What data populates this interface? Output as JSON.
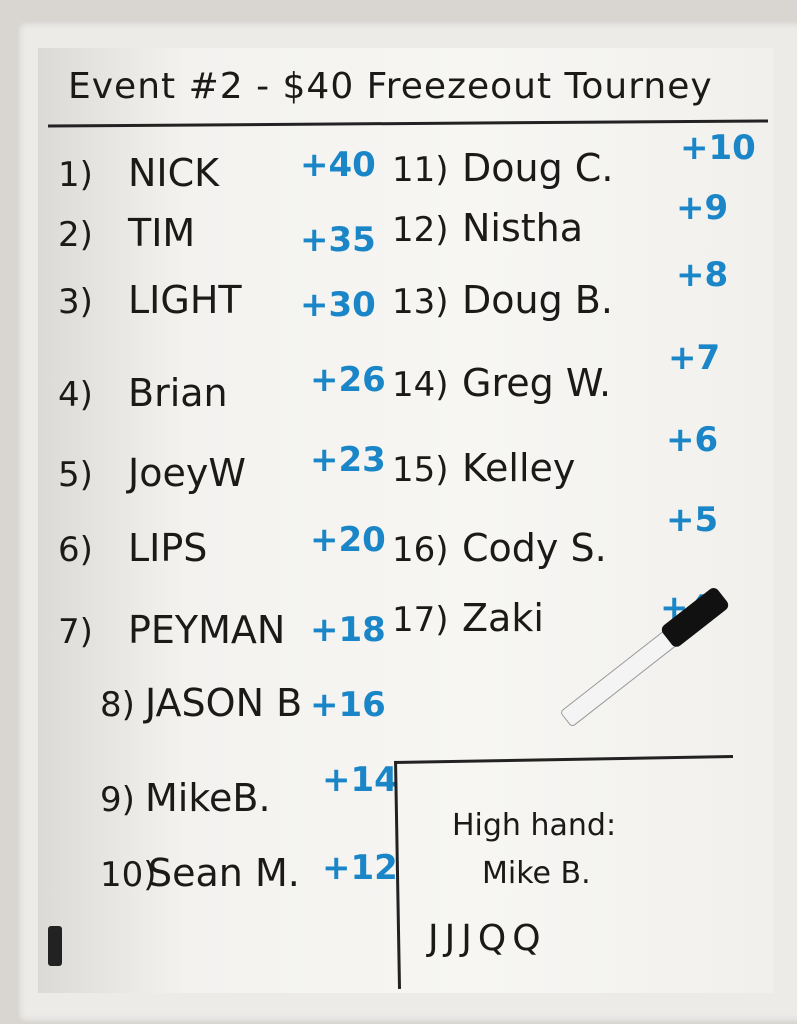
{
  "title": "Event #2 - $40 Freezeout Tourney",
  "standings": [
    {
      "rank": "1)",
      "name": "NICK",
      "points": "+40"
    },
    {
      "rank": "2)",
      "name": "TIM",
      "points": "+35"
    },
    {
      "rank": "3)",
      "name": "LIGHT",
      "points": "+30"
    },
    {
      "rank": "4)",
      "name": "Brian",
      "points": "+26"
    },
    {
      "rank": "5)",
      "name": "JoeyW",
      "points": "+23"
    },
    {
      "rank": "6)",
      "name": "LIPS",
      "points": "+20"
    },
    {
      "rank": "7)",
      "name": "PEYMAN",
      "points": "+18"
    },
    {
      "rank": "8)",
      "name": "JASON B",
      "points": "+16"
    },
    {
      "rank": "9)",
      "name": "MikeB.",
      "points": "+14"
    },
    {
      "rank": "10)",
      "name": "Sean M.",
      "points": "+12"
    },
    {
      "rank": "11)",
      "name": "Doug C.",
      "points": "+10"
    },
    {
      "rank": "12)",
      "name": "Nistha",
      "points": "+9"
    },
    {
      "rank": "13)",
      "name": "Doug B.",
      "points": "+8"
    },
    {
      "rank": "14)",
      "name": "Greg W.",
      "points": "+7"
    },
    {
      "rank": "15)",
      "name": "Kelley",
      "points": "+6"
    },
    {
      "rank": "16)",
      "name": "Cody S.",
      "points": "+5"
    },
    {
      "rank": "17)",
      "name": "Zaki",
      "points": "+4"
    }
  ],
  "high_hand": {
    "label": "High hand:",
    "player": "Mike B.",
    "hand": "JJJQQ"
  },
  "colors": {
    "ink": "#1c1a19",
    "points": "#1a86c7",
    "board": "#f5f4f1"
  }
}
